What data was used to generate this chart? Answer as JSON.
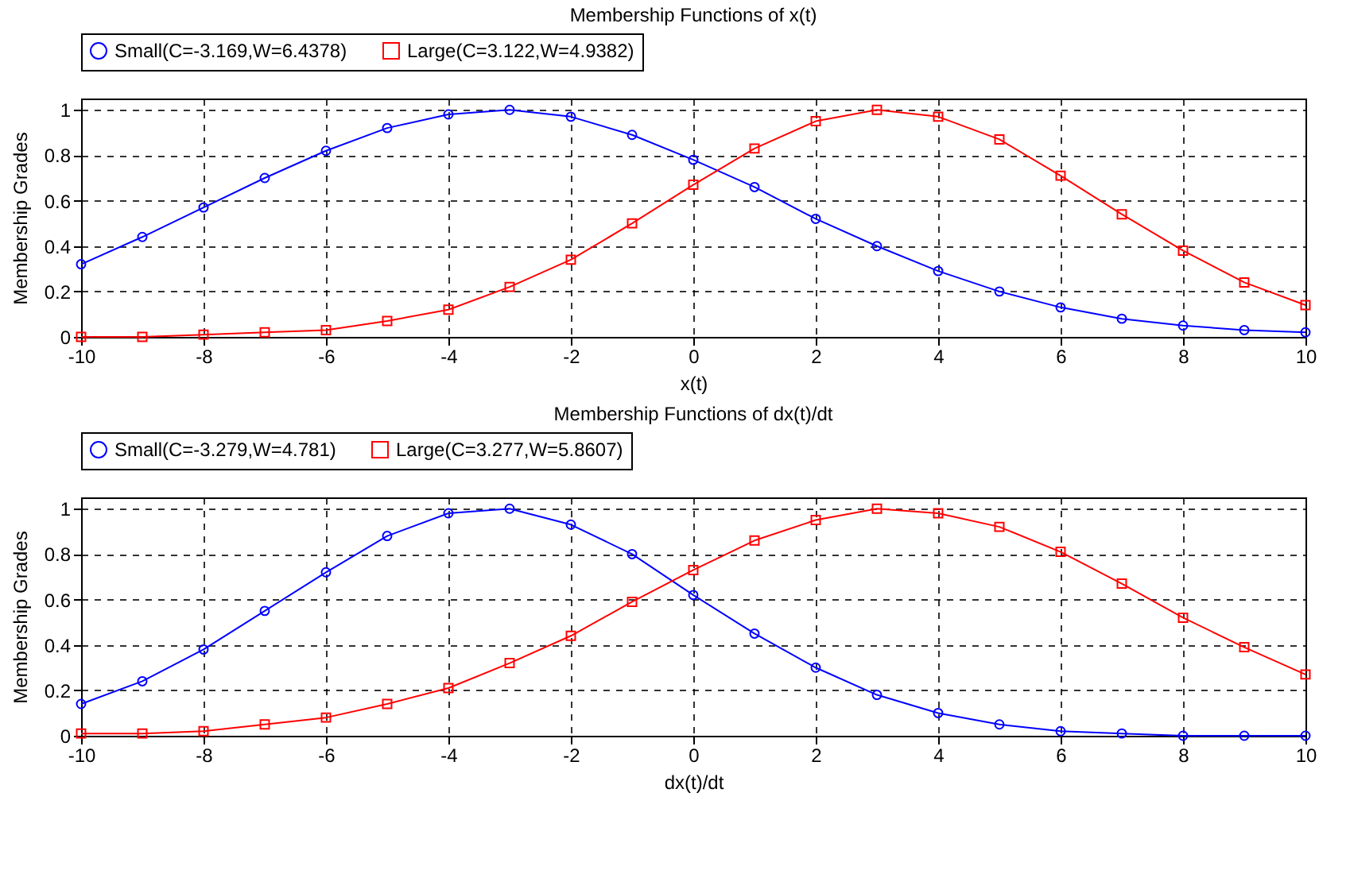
{
  "chart_data": [
    {
      "type": "line",
      "title": "Membership Functions of x(t)",
      "xlabel": "x(t)",
      "ylabel": "Membership Grades",
      "x": [
        -10,
        -9,
        -8,
        -7,
        -6,
        -5,
        -4,
        -3,
        -2,
        -1,
        0,
        1,
        2,
        3,
        4,
        5,
        6,
        7,
        8,
        9,
        10
      ],
      "series": [
        {
          "name": "Small(C=-3.169,W=6.4378)",
          "color": "#0000ff",
          "marker": "circle",
          "values": [
            0.32,
            0.44,
            0.57,
            0.7,
            0.82,
            0.92,
            0.98,
            1.0,
            0.97,
            0.89,
            0.78,
            0.66,
            0.52,
            0.4,
            0.29,
            0.2,
            0.13,
            0.08,
            0.05,
            0.03,
            0.02
          ]
        },
        {
          "name": "Large(C=3.122,W=4.9382)",
          "color": "#ff0000",
          "marker": "square",
          "values": [
            0.0,
            0.0,
            0.01,
            0.02,
            0.03,
            0.07,
            0.12,
            0.22,
            0.34,
            0.5,
            0.67,
            0.83,
            0.95,
            1.0,
            0.97,
            0.87,
            0.71,
            0.54,
            0.38,
            0.24,
            0.14
          ]
        }
      ],
      "xlim": [
        -10,
        10
      ],
      "xticks": [
        -10,
        -8,
        -6,
        -4,
        -2,
        0,
        2,
        4,
        6,
        8,
        10
      ],
      "ylim": [
        0,
        1.05
      ],
      "yticks": [
        0,
        0.2,
        0.4,
        0.6,
        0.8,
        1
      ],
      "grid": true,
      "legend": "top",
      "line_style": "solid"
    },
    {
      "type": "line",
      "title": "Membership Functions of dx(t)/dt",
      "xlabel": "dx(t)/dt",
      "ylabel": "Membership Grades",
      "x": [
        -10,
        -9,
        -8,
        -7,
        -6,
        -5,
        -4,
        -3,
        -2,
        -1,
        0,
        1,
        2,
        3,
        4,
        5,
        6,
        7,
        8,
        9,
        10
      ],
      "series": [
        {
          "name": "Small(C=-3.279,W=4.781)",
          "color": "#0000ff",
          "marker": "circle",
          "values": [
            0.14,
            0.24,
            0.38,
            0.55,
            0.72,
            0.88,
            0.98,
            1.0,
            0.93,
            0.8,
            0.62,
            0.45,
            0.3,
            0.18,
            0.1,
            0.05,
            0.02,
            0.01,
            0.0,
            0.0,
            0.0
          ]
        },
        {
          "name": "Large(C=3.277,W=5.8607)",
          "color": "#ff0000",
          "marker": "square",
          "values": [
            0.01,
            0.01,
            0.02,
            0.05,
            0.08,
            0.14,
            0.21,
            0.32,
            0.44,
            0.59,
            0.73,
            0.86,
            0.95,
            1.0,
            0.98,
            0.92,
            0.81,
            0.67,
            0.52,
            0.39,
            0.27
          ]
        }
      ],
      "xlim": [
        -10,
        10
      ],
      "xticks": [
        -10,
        -8,
        -6,
        -4,
        -2,
        0,
        2,
        4,
        6,
        8,
        10
      ],
      "ylim": [
        0,
        1.05
      ],
      "yticks": [
        0,
        0.2,
        0.4,
        0.6,
        0.8,
        1
      ],
      "grid": true,
      "legend": "top",
      "line_style": "solid"
    }
  ]
}
